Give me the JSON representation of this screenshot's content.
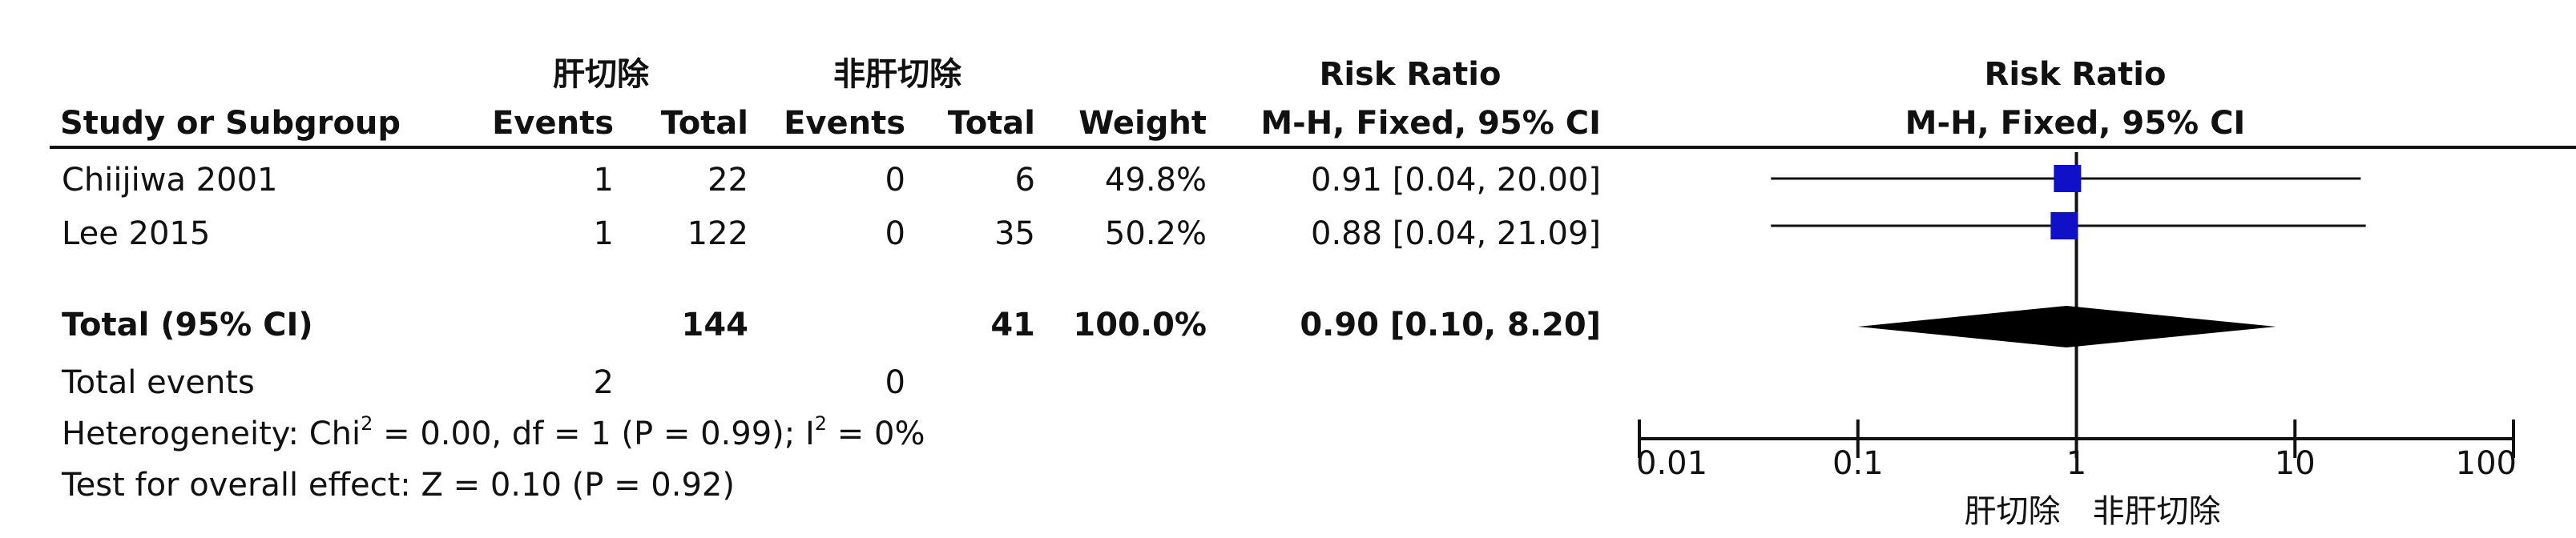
{
  "table": {
    "group1_name": "肝切除",
    "group2_name": "非肝切除",
    "headers": {
      "study": "Study or Subgroup",
      "events1": "Events",
      "total1": "Total",
      "events2": "Events",
      "total2": "Total",
      "weight": "Weight",
      "rr_title": "Risk Ratio",
      "rr_method": "M-H, Fixed, 95% CI"
    },
    "rows": [
      {
        "study": "Chiijiwa 2001",
        "events1": "1",
        "total1": "22",
        "events2": "0",
        "total2": "6",
        "weight": "49.8%",
        "ci": "0.91 [0.04, 20.00]"
      },
      {
        "study": "Lee 2015",
        "events1": "1",
        "total1": "122",
        "events2": "0",
        "total2": "35",
        "weight": "50.2%",
        "ci": "0.88 [0.04, 21.09]"
      }
    ],
    "total": {
      "label": "Total (95% CI)",
      "total1": "144",
      "total2": "41",
      "weight": "100.0%",
      "ci": "0.90 [0.10, 8.20]"
    },
    "total_events": {
      "label": "Total events",
      "events1": "2",
      "events2": "0"
    },
    "heterogeneity": {
      "prefix": "Heterogeneity: Chi",
      "sup1": "2",
      "mid": " = 0.00, df = 1 (P = 0.99); I",
      "sup2": "2",
      "suffix": " = 0%"
    },
    "overall_effect": "Test for overall effect: Z = 0.10 (P = 0.92)"
  },
  "chart_data": {
    "type": "forest",
    "title": "Risk Ratio",
    "subtitle": "M-H, Fixed, 95% CI",
    "x_scale": "log",
    "xlim": [
      0.01,
      100
    ],
    "ticks": [
      0.01,
      0.1,
      1,
      10,
      100
    ],
    "tick_labels": [
      "0.01",
      "0.1",
      "1",
      "10",
      "100"
    ],
    "null_line": 1,
    "favours_left": "肝切除",
    "favours_right": "非肝切除",
    "study_color": "#1010c8",
    "studies": [
      {
        "name": "Chiijiwa 2001",
        "estimate": 0.91,
        "lower": 0.04,
        "upper": 20.0,
        "weight": 49.8
      },
      {
        "name": "Lee 2015",
        "estimate": 0.88,
        "lower": 0.04,
        "upper": 21.09,
        "weight": 50.2
      }
    ],
    "pooled": {
      "estimate": 0.9,
      "lower": 0.1,
      "upper": 8.2
    }
  }
}
